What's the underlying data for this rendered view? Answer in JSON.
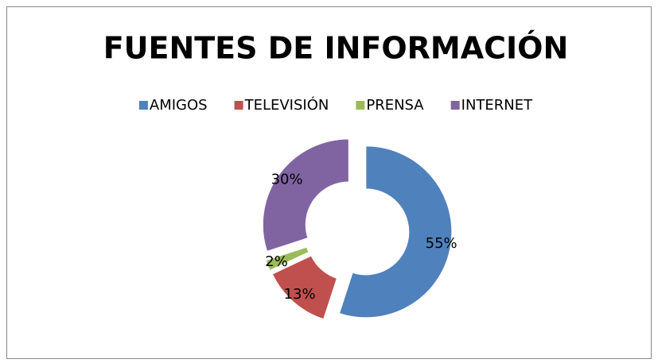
{
  "chart_data": {
    "type": "doughnut",
    "title": "FUENTES DE INFORMACIÓN",
    "categories": [
      "AMIGOS",
      "TELEVISIÓN",
      "PRENSA",
      "INTERNET"
    ],
    "values": [
      55,
      13,
      2,
      30
    ],
    "value_labels": [
      "55%",
      "13%",
      "2%",
      "30%"
    ],
    "colors": [
      "#4f81bd",
      "#c0504d",
      "#9bbb59",
      "#8064a2"
    ],
    "legend": "top"
  }
}
